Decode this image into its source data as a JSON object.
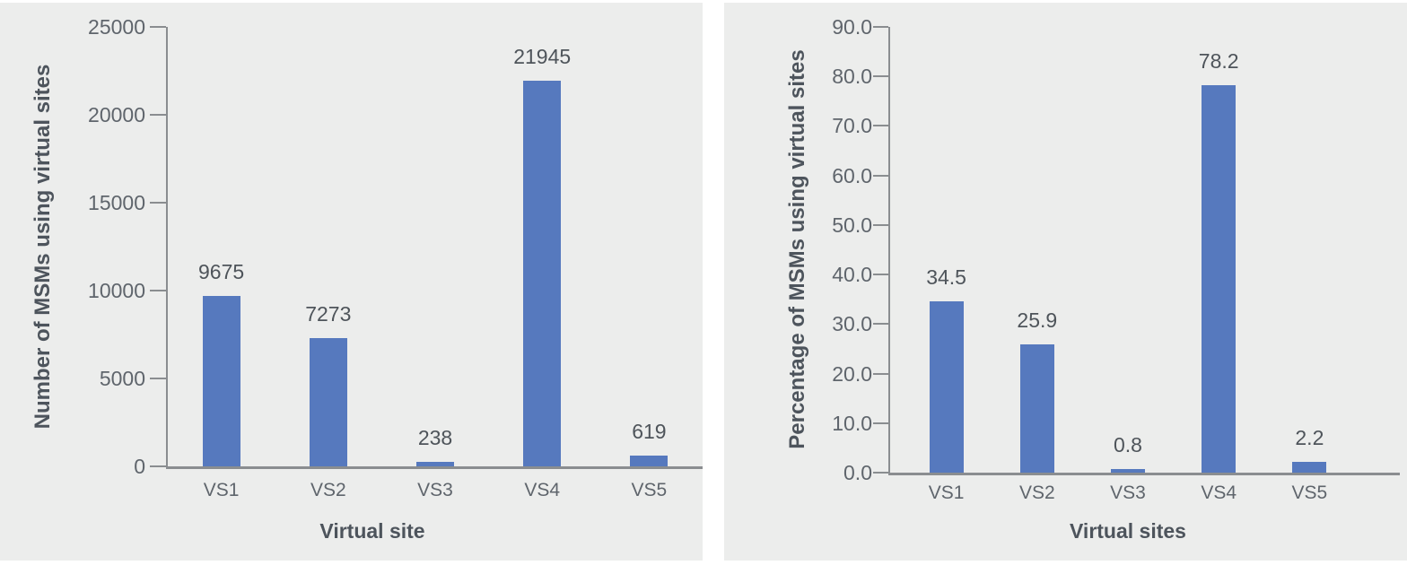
{
  "colors": {
    "panel_background": "#ecedec",
    "bar": "#5679be",
    "axis_line": "#8a8d90",
    "tick_text": "#5f656c",
    "label_text": "#4e545a",
    "title_text": "#4d545c"
  },
  "chart_data": [
    {
      "type": "bar",
      "title": "",
      "xlabel": "Virtual site",
      "ylabel": "Number of MSMs using virtual sites",
      "categories": [
        "VS1",
        "VS2",
        "VS3",
        "VS4",
        "VS5"
      ],
      "values": [
        9675,
        7273,
        238,
        21945,
        619
      ],
      "data_labels": [
        "9675",
        "7273",
        "238",
        "21945",
        "619"
      ],
      "ylim": [
        0,
        25000
      ],
      "ytick_step": 5000,
      "ytick_labels": [
        "0",
        "5000",
        "10000",
        "15000",
        "20000",
        "25000"
      ],
      "grid": false,
      "legend": null,
      "bar_color": "#5679be"
    },
    {
      "type": "bar",
      "title": "",
      "xlabel": "Virtual sites",
      "ylabel": "Percentage of MSMs using virtual sites",
      "categories": [
        "VS1",
        "VS2",
        "VS3",
        "VS4",
        "VS5"
      ],
      "values": [
        34.5,
        25.9,
        0.8,
        78.2,
        2.2
      ],
      "data_labels": [
        "34.5",
        "25.9",
        "0.8",
        "78.2",
        "2.2"
      ],
      "ylim": [
        0,
        90
      ],
      "ytick_step": 10,
      "ytick_labels": [
        "0.0",
        "10.0",
        "20.0",
        "30.0",
        "40.0",
        "50.0",
        "60.0",
        "70.0",
        "80.0",
        "90.0"
      ],
      "grid": false,
      "legend": null,
      "bar_color": "#5679be"
    }
  ]
}
